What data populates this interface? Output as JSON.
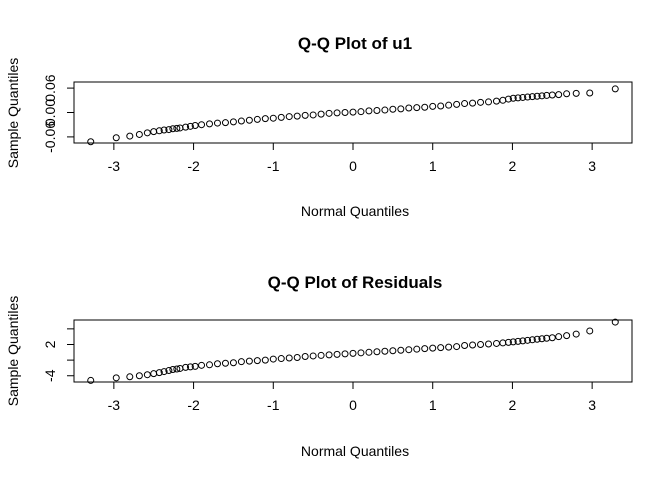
{
  "chart_data": [
    {
      "type": "scatter",
      "title": "Q-Q Plot of u1",
      "xlabel": "Normal Quantiles",
      "ylabel": "Sample Quantiles",
      "xlim": [
        -3.5,
        3.5
      ],
      "ylim": [
        -0.075,
        0.075
      ],
      "xticks": [
        -3,
        -2,
        -1,
        0,
        1,
        2,
        3
      ],
      "xtick_labels": [
        "-3",
        "-2",
        "-1",
        "0",
        "1",
        "2",
        "3"
      ],
      "yticks": [
        -0.06,
        0,
        0.06
      ],
      "ytick_labels": [
        "-0.06",
        "0.00",
        "0.06"
      ],
      "point_color": "#000000",
      "series": [
        {
          "x": [
            -3.29,
            -2.97,
            -2.8,
            -2.68,
            -2.58,
            -2.5,
            -2.43,
            -2.37,
            -2.31,
            -2.26,
            -2.21,
            -2.17,
            -2.1,
            -2.04,
            -1.98,
            -1.9,
            -1.8,
            -1.7,
            -1.6,
            -1.5,
            -1.4,
            -1.3,
            -1.2,
            -1.1,
            -1.0,
            -0.9,
            -0.8,
            -0.7,
            -0.6,
            -0.5,
            -0.4,
            -0.3,
            -0.2,
            -0.1,
            0.0,
            0.1,
            0.2,
            0.3,
            0.4,
            0.5,
            0.6,
            0.7,
            0.8,
            0.9,
            1.0,
            1.1,
            1.2,
            1.3,
            1.4,
            1.5,
            1.6,
            1.7,
            1.8,
            1.88,
            1.95,
            2.01,
            2.07,
            2.13,
            2.19,
            2.25,
            2.31,
            2.37,
            2.43,
            2.5,
            2.58,
            2.68,
            2.8,
            2.97,
            3.29
          ],
          "y": [
            -0.072,
            -0.062,
            -0.058,
            -0.054,
            -0.05,
            -0.047,
            -0.045,
            -0.043,
            -0.042,
            -0.04,
            -0.039,
            -0.038,
            -0.036,
            -0.034,
            -0.032,
            -0.03,
            -0.028,
            -0.026,
            -0.025,
            -0.023,
            -0.021,
            -0.019,
            -0.017,
            -0.015,
            -0.014,
            -0.012,
            -0.01,
            -0.009,
            -0.007,
            -0.006,
            -0.004,
            -0.002,
            -0.001,
            0.0,
            0.001,
            0.002,
            0.004,
            0.005,
            0.006,
            0.008,
            0.009,
            0.011,
            0.012,
            0.013,
            0.015,
            0.016,
            0.018,
            0.02,
            0.022,
            0.023,
            0.025,
            0.026,
            0.028,
            0.03,
            0.033,
            0.035,
            0.036,
            0.037,
            0.038,
            0.039,
            0.04,
            0.041,
            0.042,
            0.043,
            0.044,
            0.046,
            0.047,
            0.048,
            0.058
          ]
        }
      ]
    },
    {
      "type": "scatter",
      "title": "Q-Q Plot of Residuals",
      "xlabel": "Normal Quantiles",
      "ylabel": "Sample Quantiles",
      "xlim": [
        -3.5,
        3.5
      ],
      "ylim": [
        -5.2,
        6.7
      ],
      "xticks": [
        -3,
        -2,
        -1,
        0,
        1,
        2,
        3
      ],
      "xtick_labels": [
        "-3",
        "-2",
        "-1",
        "0",
        "1",
        "2",
        "3"
      ],
      "yticks": [
        -4,
        -1,
        2,
        5
      ],
      "ytick_labels": [
        "-4",
        "",
        "2",
        ""
      ],
      "point_color": "#000000",
      "series": [
        {
          "x": [
            -3.29,
            -2.97,
            -2.8,
            -2.68,
            -2.58,
            -2.5,
            -2.43,
            -2.37,
            -2.31,
            -2.26,
            -2.21,
            -2.17,
            -2.1,
            -2.04,
            -1.98,
            -1.9,
            -1.8,
            -1.7,
            -1.6,
            -1.5,
            -1.4,
            -1.3,
            -1.2,
            -1.1,
            -1.0,
            -0.9,
            -0.8,
            -0.7,
            -0.6,
            -0.5,
            -0.4,
            -0.3,
            -0.2,
            -0.1,
            0.0,
            0.1,
            0.2,
            0.3,
            0.4,
            0.5,
            0.6,
            0.7,
            0.8,
            0.9,
            1.0,
            1.1,
            1.2,
            1.3,
            1.4,
            1.5,
            1.6,
            1.7,
            1.8,
            1.88,
            1.95,
            2.01,
            2.07,
            2.13,
            2.19,
            2.25,
            2.31,
            2.37,
            2.43,
            2.5,
            2.58,
            2.68,
            2.8,
            2.97,
            3.29
          ],
          "y": [
            -4.9,
            -4.4,
            -4.2,
            -4.0,
            -3.8,
            -3.6,
            -3.4,
            -3.2,
            -3.0,
            -2.8,
            -2.7,
            -2.6,
            -2.4,
            -2.3,
            -2.2,
            -2.0,
            -1.9,
            -1.7,
            -1.6,
            -1.5,
            -1.3,
            -1.2,
            -1.1,
            -1.0,
            -0.8,
            -0.7,
            -0.6,
            -0.5,
            -0.3,
            -0.2,
            -0.1,
            0.0,
            0.1,
            0.2,
            0.3,
            0.4,
            0.5,
            0.6,
            0.7,
            0.8,
            0.9,
            1.0,
            1.1,
            1.2,
            1.3,
            1.4,
            1.5,
            1.6,
            1.8,
            1.9,
            2.0,
            2.1,
            2.2,
            2.3,
            2.4,
            2.5,
            2.6,
            2.7,
            2.8,
            2.9,
            3.0,
            3.1,
            3.2,
            3.3,
            3.5,
            3.7,
            4.0,
            4.6,
            6.3
          ]
        }
      ]
    }
  ]
}
